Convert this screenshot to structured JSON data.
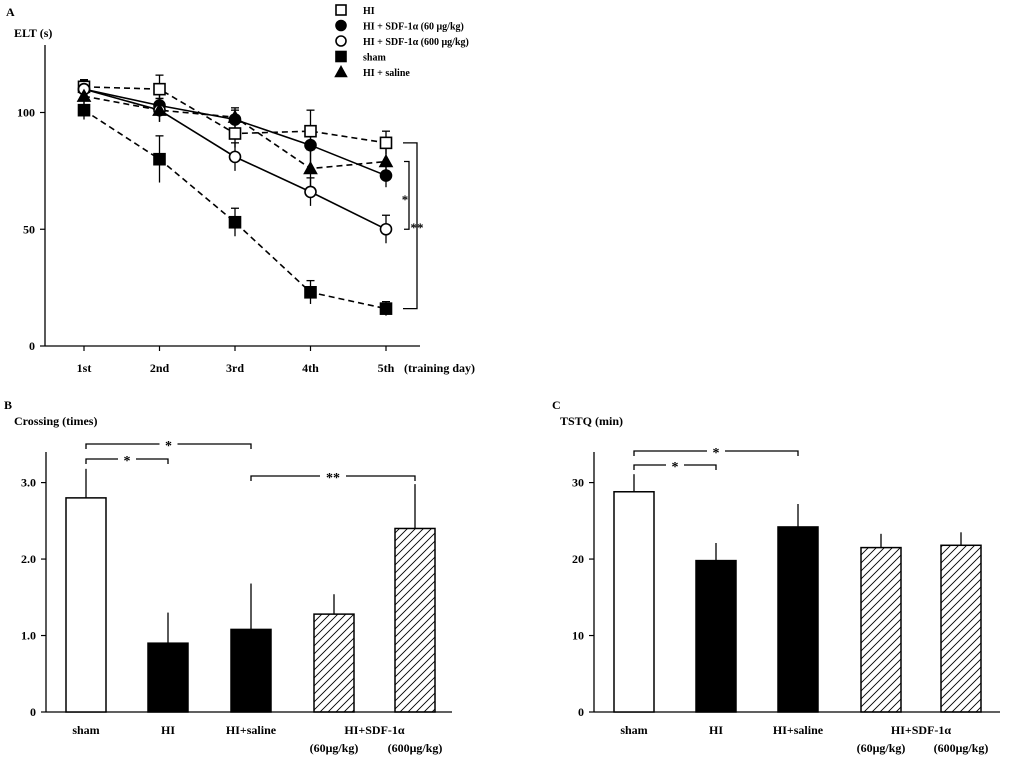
{
  "chart_data": [
    {
      "id": "A",
      "panel_label": "A",
      "type": "line",
      "ylabel": "ELT (s)",
      "xlabel": "(training day)",
      "categories": [
        "1st",
        "2nd",
        "3rd",
        "4th",
        "5th"
      ],
      "ylim": [
        0,
        130
      ],
      "yticks": [
        "0",
        "50",
        "100"
      ],
      "series": [
        {
          "name": "HI",
          "marker": "square-open",
          "dashed": true,
          "values": [
            111,
            110,
            91,
            92,
            87
          ],
          "errors": [
            3,
            6,
            6,
            9,
            5
          ]
        },
        {
          "name": "HI + SDF-1α (60   μg/kg)",
          "marker": "circle-filled",
          "dashed": false,
          "values": [
            110,
            103,
            97,
            86,
            73
          ],
          "errors": [
            4,
            5,
            4,
            8,
            5
          ]
        },
        {
          "name": "HI + SDF-1α (600 μg/kg)",
          "marker": "circle-open",
          "dashed": false,
          "values": [
            110,
            101,
            81,
            66,
            50
          ],
          "errors": [
            4,
            5,
            6,
            6,
            6
          ]
        },
        {
          "name": "sham",
          "marker": "square-filled",
          "dashed": true,
          "values": [
            101,
            80,
            53,
            23,
            16
          ],
          "errors": [
            4,
            10,
            6,
            5,
            3
          ]
        },
        {
          "name": "HI + saline",
          "marker": "triangle-filled",
          "dashed": true,
          "values": [
            107,
            101,
            98,
            76,
            79
          ],
          "errors": [
            4,
            5,
            4,
            8,
            6
          ]
        }
      ],
      "annotations": [
        {
          "text": "*",
          "between": [
            "HI + SDF-1α (600 μg/kg)",
            "HI + saline"
          ]
        },
        {
          "text": "**",
          "between": [
            "HI",
            "sham"
          ]
        }
      ]
    },
    {
      "id": "B",
      "panel_label": "B",
      "type": "bar",
      "ylabel": "Crossing (times)",
      "categories": [
        "sham",
        "HI",
        "HI+saline",
        "HI+SDF-1α",
        ""
      ],
      "sublabels": [
        "",
        "",
        "",
        "(60μg/kg)",
        "(600μg/kg)"
      ],
      "values": [
        2.8,
        0.9,
        1.08,
        1.28,
        2.4
      ],
      "errors": [
        0.38,
        0.4,
        0.6,
        0.26,
        0.58
      ],
      "fills": [
        "open",
        "filled",
        "filled",
        "hatched",
        "hatched"
      ],
      "ylim": [
        0,
        3.4
      ],
      "yticks": [
        "0",
        "1.0",
        "2.0",
        "3.0"
      ],
      "brackets": [
        {
          "from": 0,
          "to": 2,
          "text": "*"
        },
        {
          "from": 0,
          "to": 1,
          "text": "*"
        },
        {
          "from": 2,
          "to": 4,
          "text": "**"
        }
      ]
    },
    {
      "id": "C",
      "panel_label": "C",
      "type": "bar",
      "ylabel": "TSTQ (min)",
      "categories": [
        "sham",
        "HI",
        "HI+saline",
        "HI+SDF-1α",
        ""
      ],
      "sublabels": [
        "",
        "",
        "",
        "(60μg/kg)",
        "(600μg/kg)"
      ],
      "values": [
        28.8,
        19.8,
        24.2,
        21.5,
        21.8
      ],
      "errors": [
        2.3,
        2.3,
        3.0,
        1.8,
        1.7
      ],
      "fills": [
        "open",
        "filled",
        "filled",
        "hatched",
        "hatched"
      ],
      "ylim": [
        0,
        34
      ],
      "yticks": [
        "0",
        "10",
        "20",
        "30"
      ],
      "brackets": [
        {
          "from": 0,
          "to": 2,
          "text": "*"
        },
        {
          "from": 0,
          "to": 1,
          "text": "*"
        }
      ]
    }
  ]
}
